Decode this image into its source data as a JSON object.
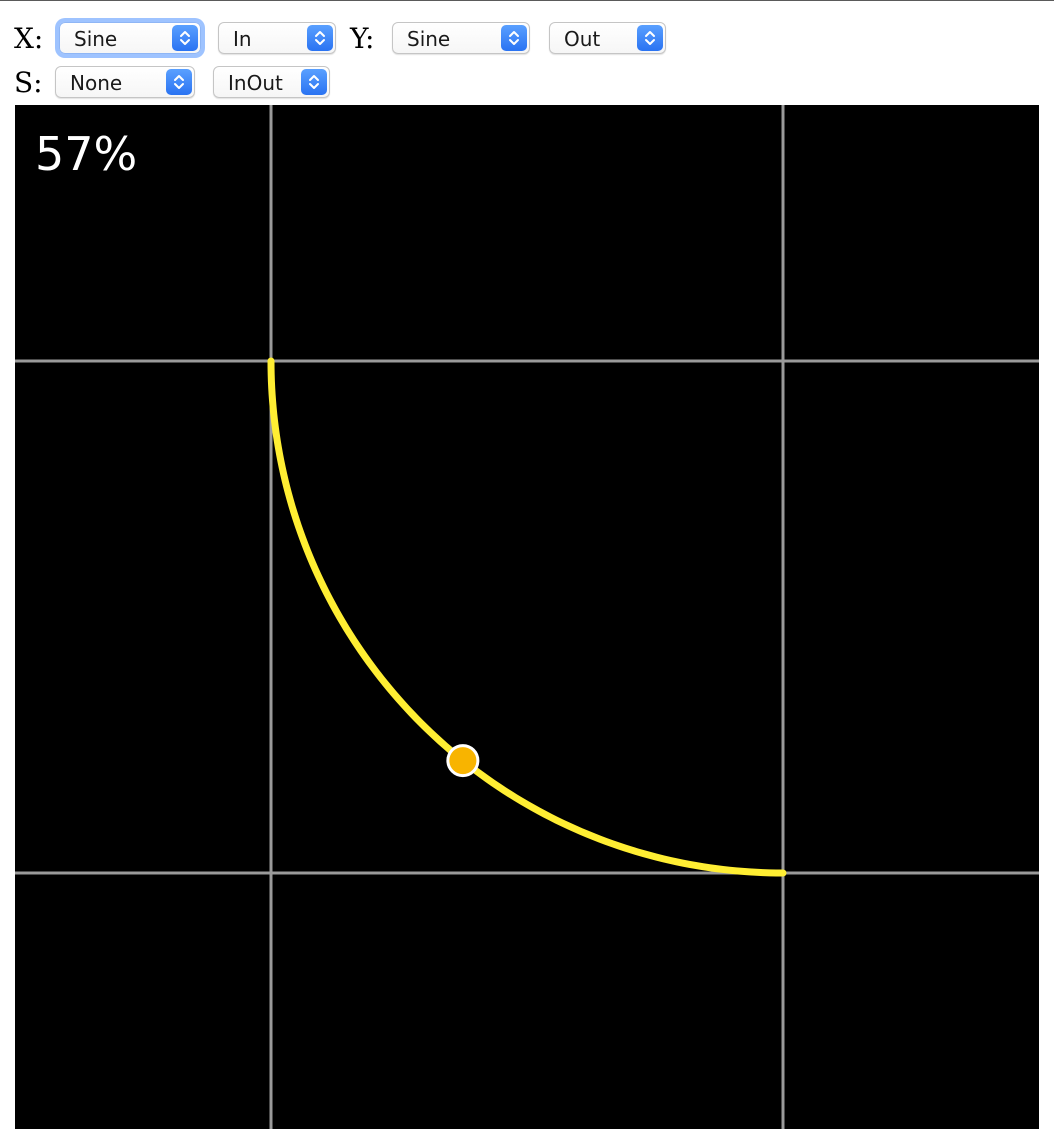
{
  "controls": {
    "x": {
      "label": "X:",
      "easing": "Sine",
      "mode": "In"
    },
    "y": {
      "label": "Y:",
      "easing": "Sine",
      "mode": "Out"
    },
    "s": {
      "label": "S:",
      "easing": "None",
      "mode": "InOut"
    }
  },
  "canvas": {
    "progress_text": "57%",
    "progress": 0.57,
    "background_color": "#000000",
    "grid_color": "#9a9a9a",
    "curve_color": "#ffee33",
    "dot_color": "#f8b400",
    "dot_outline_color": "#ffffff"
  },
  "icons": {
    "select_stepper": "chevron-up-down-icon"
  }
}
